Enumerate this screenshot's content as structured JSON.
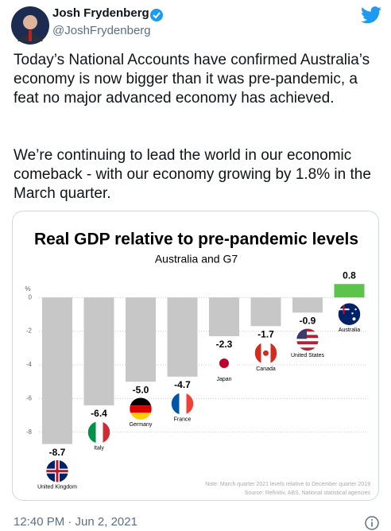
{
  "tweet": {
    "name": "Josh Frydenberg",
    "handle": "@JoshFrydenberg",
    "paragraphs": [
      "Today’s National Accounts have confirmed Australia’s economy is now bigger than it was pre-pandemic, a feat no major advanced economy has achieved.",
      "We’re continuing to lead the world in our economic comeback - with our economy growing by 1.8% in the March quarter."
    ],
    "timestamp": "12:40 PM · Jun 2, 2021"
  },
  "chart_data": {
    "type": "bar",
    "title": "Real GDP relative to pre-pandemic levels",
    "subtitle": "Australia and G7",
    "y_label": "%",
    "categories": [
      "United Kingdom",
      "Italy",
      "Germany",
      "France",
      "Japan",
      "Canada",
      "United States",
      "Australia"
    ],
    "values": [
      -8.7,
      -6.4,
      -5.0,
      -4.7,
      -2.3,
      -1.7,
      -0.9,
      0.8
    ],
    "value_labels": [
      "-8.7",
      "-6.4",
      "-5.0",
      "-4.7",
      "-2.3",
      "-1.7",
      "-0.9",
      "0.8"
    ],
    "colors": [
      "#c7c7c7",
      "#c7c7c7",
      "#c7c7c7",
      "#c7c7c7",
      "#c7c7c7",
      "#c7c7c7",
      "#c7c7c7",
      "#5cc44a"
    ],
    "ylim": [
      -9,
      1
    ],
    "yticks": [
      0,
      -2,
      -4,
      -6,
      -8
    ],
    "grid": true,
    "notes": [
      "Note: March quarter 2021 levels relative to December quarter 2019",
      "Source: Refinitiv, ABS, National statistical agencies"
    ]
  }
}
